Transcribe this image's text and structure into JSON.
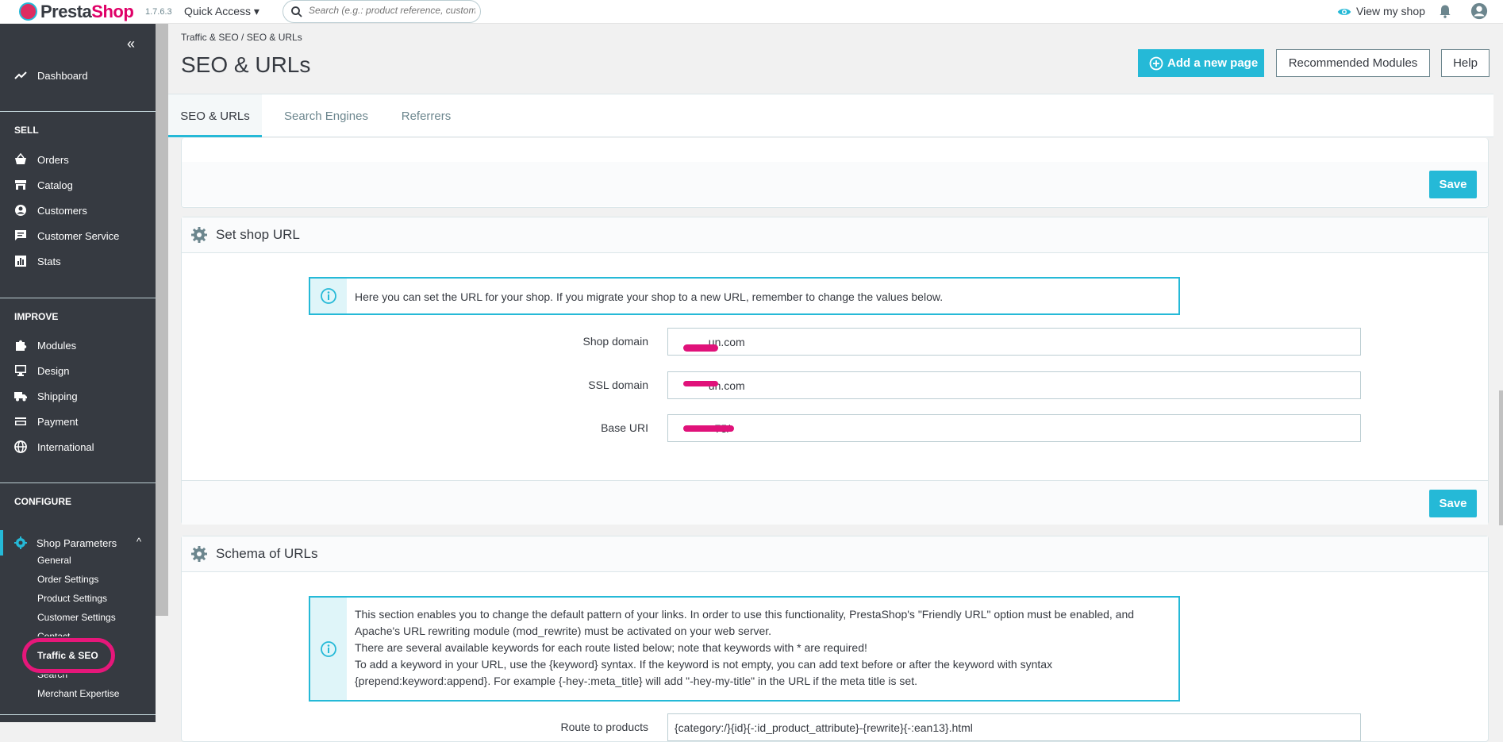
{
  "topbar": {
    "logo": "PrestaShop",
    "logo_presta": "Presta",
    "logo_shop": "Shop",
    "version": "1.7.6.3",
    "quick_access": "Quick Access",
    "search_placeholder": "Search (e.g.: product reference, custome",
    "view_shop": "View my shop"
  },
  "sidebar": {
    "collapse": "«",
    "dashboard": "Dashboard",
    "sections": {
      "sell": "SELL",
      "improve": "IMPROVE",
      "configure": "CONFIGURE"
    },
    "sell_items": [
      {
        "label": "Orders",
        "icon": "cart-icon"
      },
      {
        "label": "Catalog",
        "icon": "store-icon"
      },
      {
        "label": "Customers",
        "icon": "user-icon"
      },
      {
        "label": "Customer Service",
        "icon": "chat-icon"
      },
      {
        "label": "Stats",
        "icon": "bar-chart-icon"
      }
    ],
    "improve_items": [
      {
        "label": "Modules",
        "icon": "puzzle-icon"
      },
      {
        "label": "Design",
        "icon": "desktop-icon"
      },
      {
        "label": "Shipping",
        "icon": "truck-icon"
      },
      {
        "label": "Payment",
        "icon": "card-icon"
      },
      {
        "label": "International",
        "icon": "globe-icon"
      }
    ],
    "shop_parameters": "Shop Parameters",
    "sub_items": [
      "General",
      "Order Settings",
      "Product Settings",
      "Customer Settings",
      "Contact",
      "Traffic & SEO",
      "Search",
      "Merchant Expertise"
    ]
  },
  "header": {
    "breadcrumb": "Traffic & SEO  /  SEO & URLs",
    "title": "SEO & URLs",
    "add_page": "Add a new page",
    "recommended_modules": "Recommended Modules",
    "help": "Help"
  },
  "tabs": [
    "SEO & URLs",
    "Search Engines",
    "Referrers"
  ],
  "save_label": "Save",
  "set_shop_url": {
    "title": "Set shop URL",
    "info": "Here you can set the URL for your shop. If you migrate your shop to a new URL, remember to change the values below.",
    "fields": [
      {
        "label": "Shop domain",
        "value": "           un.com"
      },
      {
        "label": "SSL domain",
        "value": "           un.com"
      },
      {
        "label": "Base URI",
        "value": "             75/"
      }
    ]
  },
  "schema_urls": {
    "title": "Schema of URLs",
    "info_line1": "This section enables you to change the default pattern of your links. In order to use this functionality, PrestaShop's \"Friendly URL\" option must be enabled, and Apache's URL rewriting module (mod_rewrite) must be activated on your web server.",
    "info_line2": "There are several available keywords for each route listed below; note that keywords with * are required!",
    "info_line3": "To add a keyword in your URL, use the {keyword} syntax. If the keyword is not empty, you can add text before or after the keyword with syntax {prepend:keyword:append}. For example {-hey-:meta_title} will add \"-hey-my-title\" in the URL if the meta title is set.",
    "route_label": "Route to products",
    "route_value": "{category:/}{id}{-:id_product_attribute}-{rewrite}{-:ean13}.html"
  },
  "colors": {
    "accent": "#25b9d7",
    "sidebar": "#363a41",
    "highlight": "#e6177a"
  }
}
